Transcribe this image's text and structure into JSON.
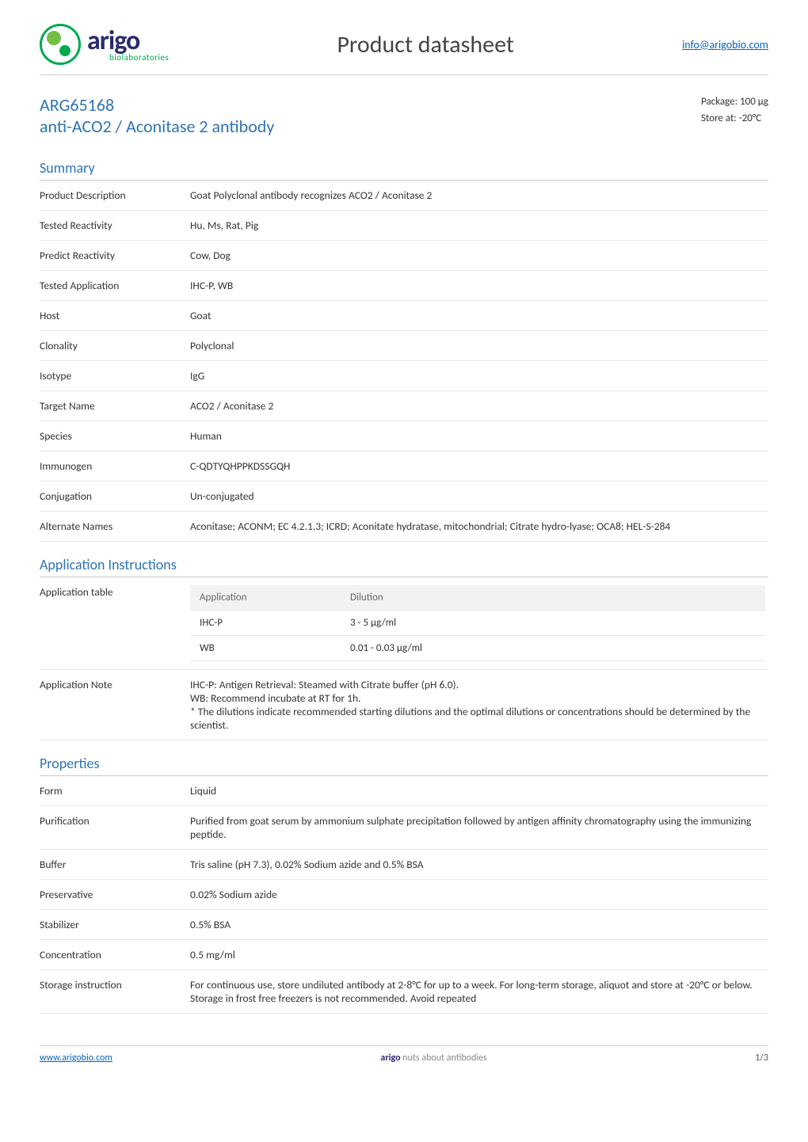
{
  "header": {
    "brand": "arigo",
    "brand_sub": "biolaboratories",
    "title": "Product datasheet",
    "info_link": "info@arigobio.com"
  },
  "product": {
    "code": "ARG65168",
    "name": "anti-ACO2 / Aconitase 2 antibody",
    "package_label": "Package:",
    "package_value": "100 μg",
    "store_label": "Store at:",
    "store_value": "-20°C"
  },
  "sections": {
    "summary_title": "Summary",
    "application_title": "Application Instructions",
    "properties_title": "Properties"
  },
  "summary": [
    {
      "k": "Product Description",
      "v": "Goat Polyclonal antibody recognizes ACO2 / Aconitase 2"
    },
    {
      "k": "Tested Reactivity",
      "v": "Hu, Ms, Rat, Pig"
    },
    {
      "k": "Predict Reactivity",
      "v": "Cow, Dog"
    },
    {
      "k": "Tested Application",
      "v": "IHC-P, WB"
    },
    {
      "k": "Host",
      "v": "Goat"
    },
    {
      "k": "Clonality",
      "v": "Polyclonal"
    },
    {
      "k": "Isotype",
      "v": "IgG"
    },
    {
      "k": "Target Name",
      "v": "ACO2 / Aconitase 2"
    },
    {
      "k": "Species",
      "v": "Human"
    },
    {
      "k": "Immunogen",
      "v": "C-QDTYQHPPKDSSGQH"
    },
    {
      "k": "Conjugation",
      "v": "Un-conjugated"
    },
    {
      "k": "Alternate Names",
      "v": "Aconitase; ACONM; EC 4.2.1.3; ICRD; Aconitate hydratase, mitochondrial; Citrate hydro-lyase; OCA8; HEL-S-284"
    }
  ],
  "application": {
    "table_label": "Application table",
    "col_app": "Application",
    "col_dil": "Dilution",
    "rows": [
      {
        "app": "IHC-P",
        "dil": "3 - 5 μg/ml"
      },
      {
        "app": "WB",
        "dil": "0.01 - 0.03 μg/ml"
      }
    ],
    "note_label": "Application Note",
    "note_text": "IHC-P: Antigen Retrieval: Steamed with Citrate buffer (pH 6.0).\nWB: Recommend incubate at RT for 1h.\n* The dilutions indicate recommended starting dilutions and the optimal dilutions or concentrations should be determined by the scientist."
  },
  "properties": [
    {
      "k": "Form",
      "v": "Liquid"
    },
    {
      "k": "Purification",
      "v": "Purified from goat serum by ammonium sulphate precipitation followed by antigen affinity chromatography using the immunizing peptide."
    },
    {
      "k": "Buffer",
      "v": "Tris saline (pH 7.3), 0.02% Sodium azide and 0.5% BSA"
    },
    {
      "k": "Preservative",
      "v": "0.02% Sodium azide"
    },
    {
      "k": "Stabilizer",
      "v": "0.5% BSA"
    },
    {
      "k": "Concentration",
      "v": "0.5 mg/ml"
    },
    {
      "k": "Storage instruction",
      "v": "For continuous use, store undiluted antibody at 2-8°C for up to a week. For long-term storage, aliquot and store at -20°C or below. Storage in frost free freezers is not recommended. Avoid repeated"
    }
  ],
  "footer": {
    "site": "www.arigobio.com",
    "tagline_brand": "arigo",
    "tagline_rest": " nuts about antibodies",
    "page": "1/3"
  },
  "colors": {
    "accent_blue": "#2e74b5",
    "link_blue": "#0563c1",
    "logo_navy": "#2b2b6e",
    "logo_green": "#00a94f",
    "logo_lightgreen": "#72bf44",
    "rule": "#cccccc",
    "row_rule": "#e6e6e6",
    "th_bg": "#f2f2f2",
    "text": "#333333",
    "muted": "#888888"
  }
}
